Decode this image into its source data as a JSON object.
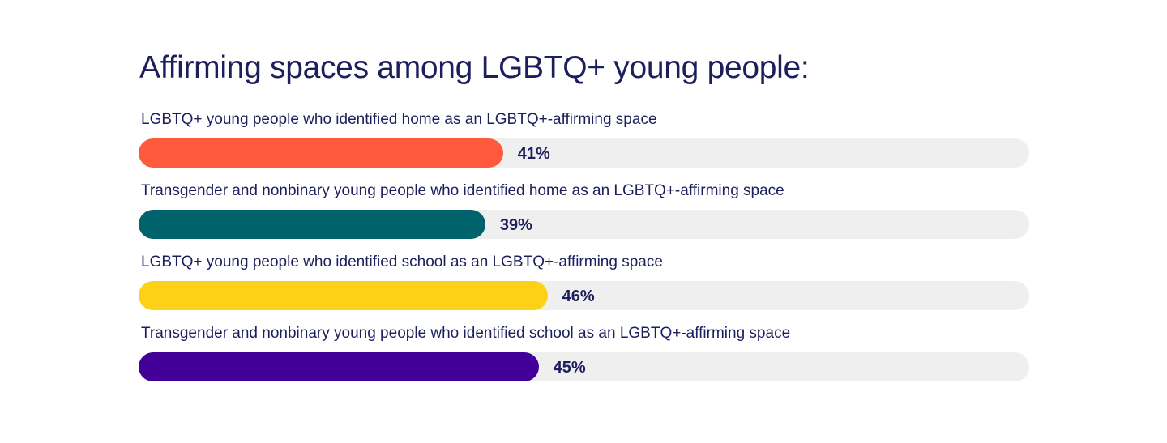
{
  "chart_data": {
    "type": "bar",
    "orientation": "horizontal",
    "title": "Affirming spaces among LGBTQ+ young people:",
    "xlabel": "",
    "ylabel": "",
    "xlim": [
      0,
      100
    ],
    "grid": false,
    "legend": "none",
    "categories": [
      "LGBTQ+ young people who identified home as an LGBTQ+-affirming space",
      "Transgender and nonbinary young people who identified home as an LGBTQ+-affirming space",
      "LGBTQ+ young people who identified school as an LGBTQ+-affirming space",
      "Transgender and nonbinary young people who identified school as an LGBTQ+-affirming space"
    ],
    "values": [
      41,
      39,
      46,
      45
    ],
    "value_labels": [
      "41%",
      "39%",
      "46%",
      "45%"
    ],
    "colors": [
      "#ff5a3c",
      "#00626a",
      "#fdd216",
      "#420099"
    ],
    "track_color": "#efefef",
    "text_color": "#1c1f5c"
  }
}
